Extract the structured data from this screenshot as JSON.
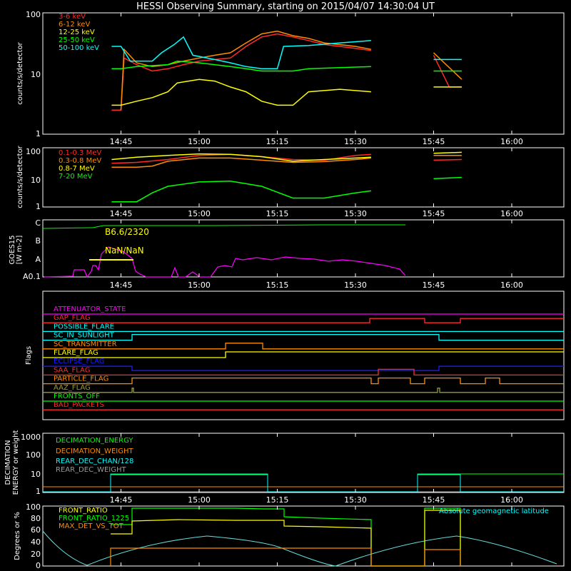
{
  "title": "HESSI Observing Summary, starting on 2015/04/07 14:30:04 UT",
  "time_ticks": [
    "14:45",
    "15:00",
    "15:15",
    "15:30",
    "15:45",
    "16:00"
  ],
  "colors": {
    "red": "#ff2a2a",
    "orange": "#ff8c00",
    "yellow": "#ffff00",
    "green": "#00ff00",
    "cyan": "#00ffff",
    "magenta": "#ff00ff",
    "blue": "#1a1aff",
    "olive": "#9a9a3a",
    "gray": "#9a9a9a",
    "light_cyan": "#66dddd"
  },
  "chart_data": [
    {
      "id": "panel-lo",
      "type": "line",
      "ylabel": "counts/s/detector",
      "yscale": "log",
      "ylim": [
        1,
        100
      ],
      "y_ticks": [
        "1",
        "10",
        "100"
      ],
      "legend": [
        "3-6 keV",
        "6-12 keV",
        "12-25 keV",
        "25-50 keV",
        "50-100 keV"
      ],
      "legend_colors": [
        "red",
        "orange",
        "yellow",
        "green",
        "cyan"
      ],
      "series": [
        {
          "name": "3-6 keV",
          "color": "red",
          "points": [
            [
              14.72,
              2.5
            ],
            [
              14.75,
              2.5
            ],
            [
              14.76,
              18
            ],
            [
              14.8,
              14
            ],
            [
              14.85,
              11
            ],
            [
              14.9,
              12
            ],
            [
              14.95,
              14
            ],
            [
              15.0,
              16
            ],
            [
              15.05,
              17
            ],
            [
              15.1,
              18
            ],
            [
              15.15,
              28
            ],
            [
              15.2,
              40
            ],
            [
              15.25,
              45
            ],
            [
              15.3,
              40
            ],
            [
              15.35,
              35
            ],
            [
              15.4,
              30
            ],
            [
              15.5,
              26
            ],
            [
              15.55,
              24
            ],
            [
              15.55,
              null
            ],
            [
              15.75,
              20
            ],
            [
              15.8,
              6
            ],
            [
              15.84,
              6
            ]
          ]
        },
        {
          "name": "6-12 keV",
          "color": "orange",
          "points": [
            [
              14.75,
              2.5
            ],
            [
              14.76,
              25
            ],
            [
              14.8,
              15
            ],
            [
              14.85,
              13
            ],
            [
              14.9,
              14
            ],
            [
              14.95,
              16
            ],
            [
              15.0,
              18
            ],
            [
              15.05,
              20
            ],
            [
              15.1,
              22
            ],
            [
              15.15,
              32
            ],
            [
              15.2,
              45
            ],
            [
              15.25,
              50
            ],
            [
              15.3,
              42
            ],
            [
              15.35,
              38
            ],
            [
              15.4,
              32
            ],
            [
              15.5,
              28
            ],
            [
              15.55,
              25
            ],
            [
              15.55,
              null
            ],
            [
              15.75,
              22
            ],
            [
              15.84,
              8
            ]
          ]
        },
        {
          "name": "12-25 keV",
          "color": "yellow",
          "points": [
            [
              14.72,
              3
            ],
            [
              14.75,
              3
            ],
            [
              14.8,
              3.5
            ],
            [
              14.85,
              4
            ],
            [
              14.9,
              5
            ],
            [
              14.93,
              7
            ],
            [
              15.0,
              8
            ],
            [
              15.05,
              7.5
            ],
            [
              15.1,
              6
            ],
            [
              15.15,
              5
            ],
            [
              15.2,
              3.5
            ],
            [
              15.25,
              3
            ],
            [
              15.3,
              3
            ],
            [
              15.35,
              5
            ],
            [
              15.45,
              5.5
            ],
            [
              15.55,
              5
            ],
            [
              15.55,
              null
            ],
            [
              15.75,
              6
            ],
            [
              15.84,
              6
            ]
          ]
        },
        {
          "name": "25-50 keV",
          "color": "green",
          "points": [
            [
              14.72,
              12
            ],
            [
              14.75,
              12
            ],
            [
              14.8,
              13
            ],
            [
              14.9,
              14
            ],
            [
              14.93,
              16
            ],
            [
              15.0,
              15
            ],
            [
              15.05,
              14
            ],
            [
              15.1,
              13
            ],
            [
              15.15,
              12
            ],
            [
              15.2,
              11
            ],
            [
              15.25,
              11
            ],
            [
              15.3,
              11
            ],
            [
              15.35,
              12
            ],
            [
              15.45,
              12.5
            ],
            [
              15.55,
              13
            ],
            [
              15.55,
              null
            ],
            [
              15.75,
              11
            ],
            [
              15.84,
              11
            ]
          ]
        },
        {
          "name": "50-100 keV",
          "color": "cyan",
          "points": [
            [
              14.72,
              28
            ],
            [
              14.75,
              28
            ],
            [
              14.78,
              16
            ],
            [
              14.85,
              16
            ],
            [
              14.88,
              22
            ],
            [
              14.92,
              30
            ],
            [
              14.95,
              40
            ],
            [
              14.98,
              20
            ],
            [
              15.05,
              17
            ],
            [
              15.1,
              15
            ],
            [
              15.15,
              13
            ],
            [
              15.2,
              12
            ],
            [
              15.25,
              12
            ],
            [
              15.27,
              28
            ],
            [
              15.35,
              29
            ],
            [
              15.45,
              32
            ],
            [
              15.55,
              35
            ],
            [
              15.55,
              null
            ],
            [
              15.75,
              17
            ],
            [
              15.84,
              17
            ]
          ]
        }
      ]
    },
    {
      "id": "panel-hi",
      "type": "line",
      "ylabel": "counts/s/detector",
      "yscale": "log",
      "ylim": [
        1,
        100
      ],
      "y_ticks": [
        "1",
        "10",
        "100"
      ],
      "legend": [
        "0.1-0.3 MeV",
        "0.3-0.8 MeV",
        "0.8-7 MeV",
        "7-20 MeV"
      ],
      "legend_colors": [
        "red",
        "orange",
        "yellow",
        "green"
      ],
      "series": [
        {
          "name": "0.1-0.3 MeV",
          "color": "red",
          "points": [
            [
              14.72,
              30
            ],
            [
              14.8,
              32
            ],
            [
              14.9,
              40
            ],
            [
              15.0,
              55
            ],
            [
              15.1,
              60
            ],
            [
              15.2,
              50
            ],
            [
              15.3,
              40
            ],
            [
              15.4,
              38
            ],
            [
              15.5,
              55
            ],
            [
              15.55,
              60
            ],
            [
              15.55,
              null
            ],
            [
              15.75,
              38
            ],
            [
              15.84,
              40
            ]
          ]
        },
        {
          "name": "0.3-0.8 MeV",
          "color": "orange",
          "points": [
            [
              14.72,
              22
            ],
            [
              14.8,
              22
            ],
            [
              14.85,
              24
            ],
            [
              14.9,
              35
            ],
            [
              15.0,
              45
            ],
            [
              15.1,
              45
            ],
            [
              15.2,
              38
            ],
            [
              15.3,
              32
            ],
            [
              15.4,
              34
            ],
            [
              15.5,
              40
            ],
            [
              15.55,
              45
            ],
            [
              15.55,
              null
            ],
            [
              15.75,
              55
            ],
            [
              15.84,
              55
            ]
          ]
        },
        {
          "name": "0.8-7 MeV",
          "color": "yellow",
          "points": [
            [
              14.72,
              40
            ],
            [
              14.8,
              48
            ],
            [
              14.9,
              55
            ],
            [
              15.0,
              62
            ],
            [
              15.1,
              60
            ],
            [
              15.2,
              50
            ],
            [
              15.3,
              35
            ],
            [
              15.4,
              40
            ],
            [
              15.5,
              45
            ],
            [
              15.55,
              48
            ],
            [
              15.55,
              null
            ],
            [
              15.75,
              65
            ],
            [
              15.84,
              70
            ]
          ]
        },
        {
          "name": "7-20 MeV",
          "color": "green",
          "points": [
            [
              14.72,
              1.5
            ],
            [
              14.8,
              1.5
            ],
            [
              14.85,
              3
            ],
            [
              14.9,
              5
            ],
            [
              15.0,
              7
            ],
            [
              15.1,
              7.5
            ],
            [
              15.2,
              5
            ],
            [
              15.3,
              2
            ],
            [
              15.4,
              2
            ],
            [
              15.5,
              3
            ],
            [
              15.55,
              3.5
            ],
            [
              15.55,
              null
            ],
            [
              15.75,
              9
            ],
            [
              15.84,
              10
            ]
          ]
        }
      ]
    }
  ],
  "goes": {
    "ylabel": "GOES15",
    "ylabel_unit": "[W m-2]",
    "y_ticks": [
      "C",
      "B",
      "A",
      "A0.1"
    ],
    "annotation_1": "B6.6/2320",
    "annotation_2": "NaN/NaN"
  },
  "flags": {
    "ylabel": "Flags",
    "items": [
      {
        "label": "ATTENUATOR_STATE",
        "color": "magenta"
      },
      {
        "label": "GAP_FLAG",
        "color": "red"
      },
      {
        "label": "POSSIBLE_FLARE",
        "color": "cyan"
      },
      {
        "label": "SC_IN_SUNLIGHT",
        "color": "cyan"
      },
      {
        "label": "SC_TRANSMITTER",
        "color": "orange"
      },
      {
        "label": "FLARE_FLAG",
        "color": "yellow"
      },
      {
        "label": "ECLIPSE_FLAG",
        "color": "blue"
      },
      {
        "label": "SAA_FLAG",
        "color": "red"
      },
      {
        "label": "PARTICLE_FLAG",
        "color": "orange"
      },
      {
        "label": "AAZ_FLAG",
        "color": "olive"
      },
      {
        "label": "FRONTS_OFF",
        "color": "green"
      },
      {
        "label": "BAD_PACKETS",
        "color": "red"
      }
    ]
  },
  "decimation": {
    "ylabel_1": "DECIMATION",
    "ylabel_2": "ENERGY or weight",
    "y_ticks": [
      "1",
      "10",
      "100",
      "1000"
    ],
    "legend": [
      "DECIMATION_ENERGY",
      "DECIMATION_WEIGHT",
      "REAR_DEC_CHAN/128",
      "REAR_DEC_WEIGHT"
    ],
    "legend_colors": [
      "green",
      "orange",
      "cyan",
      "gray"
    ]
  },
  "ratio": {
    "ylabel": "Degrees or %",
    "y_ticks": [
      "0",
      "20",
      "40",
      "60",
      "80",
      "100"
    ],
    "legend": [
      "FRONT_RATIO",
      "FRONT_RATIO_1225",
      "MAX_DET_VS_TOT"
    ],
    "legend_colors": [
      "yellow",
      "green",
      "orange"
    ],
    "annotation": "Absolute geomagnetic latitude"
  }
}
